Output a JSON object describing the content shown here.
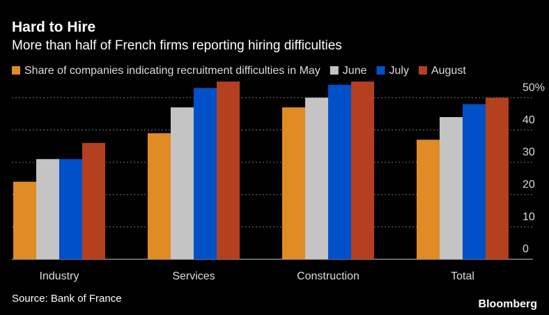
{
  "chart_data": {
    "type": "bar",
    "title": "Hard to Hire",
    "subtitle": "More than half of French firms reporting hiring difficulties",
    "source": "Source: Bank of France",
    "brand": "Bloomberg",
    "categories": [
      "Industry",
      "Services",
      "Construction",
      "Total"
    ],
    "series": [
      {
        "name": "Share of companies indicating recruitment difficulties in May",
        "color": "#e08b24",
        "values": [
          24,
          39,
          47,
          37
        ]
      },
      {
        "name": "June",
        "color": "#c4c4c4",
        "values": [
          31,
          47,
          50,
          44
        ]
      },
      {
        "name": "July",
        "color": "#0050c8",
        "values": [
          31,
          53,
          54,
          48
        ]
      },
      {
        "name": "August",
        "color": "#b5401f",
        "values": [
          36,
          55,
          55,
          50
        ]
      }
    ],
    "ylim": [
      0,
      55
    ],
    "yticks": [
      0,
      10,
      20,
      30,
      40,
      {
        "value": 50,
        "label": "50%"
      }
    ],
    "grid": true
  }
}
